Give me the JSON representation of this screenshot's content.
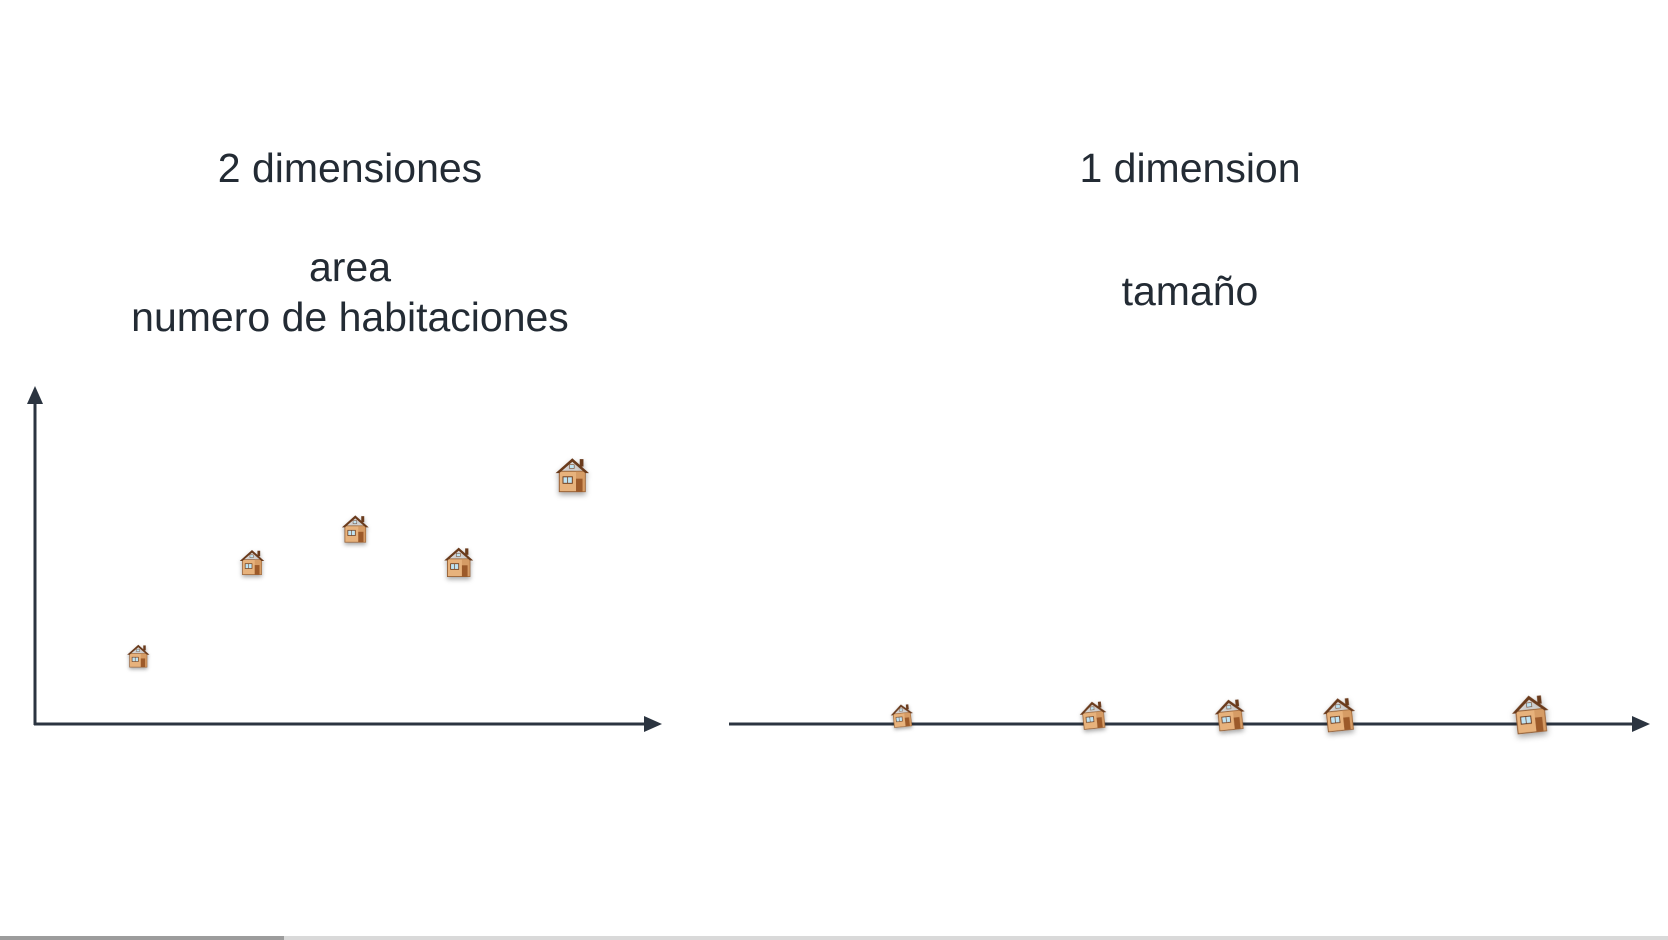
{
  "panels": {
    "left": {
      "title": "2 dimensiones",
      "feature_1": "area",
      "feature_2": "numero de habitaciones"
    },
    "right": {
      "title": "1 dimension",
      "feature_1": "tamaño"
    }
  },
  "icon": "house-icon",
  "colors": {
    "axis": "#2b3440",
    "wall": "#e7b27c",
    "wall_shade": "#c98a52",
    "roof": "#6a3b1e",
    "window": "#bfe3f2",
    "door": "#9c5a2c"
  },
  "progress": {
    "fraction": 0.17
  },
  "chart_data": [
    {
      "type": "scatter",
      "title": "2 dimensiones",
      "xlabel": "",
      "ylabel": "",
      "marker": "house-icon",
      "grid": false,
      "points": [
        {
          "x": 1.0,
          "y": 1.0,
          "size": 1.0
        },
        {
          "x": 2.1,
          "y": 2.4,
          "size": 1.1
        },
        {
          "x": 3.1,
          "y": 2.9,
          "size": 1.2
        },
        {
          "x": 4.1,
          "y": 2.4,
          "size": 1.3
        },
        {
          "x": 5.2,
          "y": 3.7,
          "size": 1.5
        }
      ],
      "xlim": [
        0,
        6
      ],
      "ylim": [
        0,
        5
      ]
    },
    {
      "type": "scatter",
      "title": "1 dimension",
      "xlabel": "",
      "ylabel": "",
      "marker": "house-icon",
      "grid": false,
      "points": [
        {
          "x": 1.9,
          "size": 1.0
        },
        {
          "x": 4.0,
          "size": 1.2
        },
        {
          "x": 5.5,
          "size": 1.35
        },
        {
          "x": 6.7,
          "size": 1.45
        },
        {
          "x": 8.8,
          "size": 1.65
        }
      ],
      "xlim": [
        0,
        10
      ]
    }
  ]
}
